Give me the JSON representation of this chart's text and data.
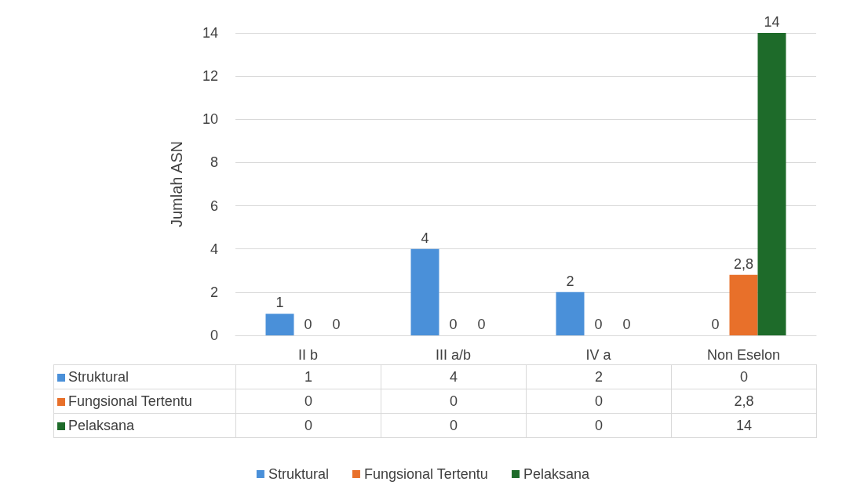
{
  "chart_data": {
    "type": "bar",
    "ylabel": "Jumlah ASN",
    "categories": [
      "II b",
      "III a/b",
      "IV a",
      "Non Eselon"
    ],
    "series": [
      {
        "name": "Struktural",
        "color": "#4a90d9",
        "values": [
          1,
          4,
          2,
          0
        ],
        "value_labels": [
          "1",
          "4",
          "2",
          "0"
        ]
      },
      {
        "name": "Fungsional Tertentu",
        "color": "#e8702a",
        "values": [
          0,
          0,
          0,
          2.8
        ],
        "value_labels": [
          "0",
          "0",
          "0",
          "2,8"
        ]
      },
      {
        "name": "Pelaksana",
        "color": "#1e6b2a",
        "values": [
          0,
          0,
          0,
          14
        ],
        "value_labels": [
          "0",
          "0",
          "0",
          "14"
        ]
      }
    ],
    "ylim": [
      0,
      14
    ],
    "yticks": [
      0,
      2,
      4,
      6,
      8,
      10,
      12,
      14
    ],
    "grid": "y",
    "legend": "bottom"
  }
}
